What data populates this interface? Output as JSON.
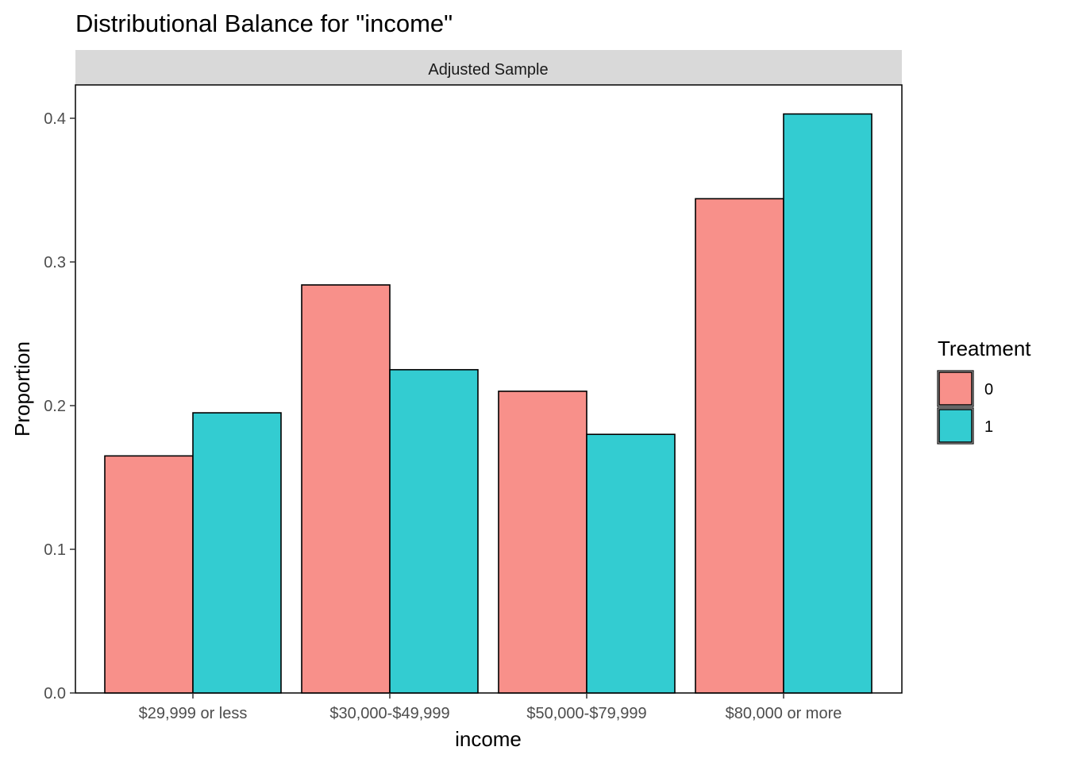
{
  "title": "Distributional Balance for \"income\"",
  "facet_label": "Adjusted Sample",
  "chart_data": {
    "type": "bar",
    "title": "Distributional Balance for \"income\"",
    "facet": "Adjusted Sample",
    "xlabel": "income",
    "ylabel": "Proportion",
    "categories": [
      "$29,999 or less",
      "$30,000-$49,999",
      "$50,000-$79,999",
      "$80,000 or more"
    ],
    "series": [
      {
        "name": "0",
        "color": "#F8908A",
        "values": [
          0.165,
          0.284,
          0.21,
          0.344
        ]
      },
      {
        "name": "1",
        "color": "#33CCD1",
        "values": [
          0.195,
          0.225,
          0.18,
          0.403
        ]
      }
    ],
    "ylim": [
      0,
      0.42
    ],
    "yticks": [
      0.0,
      0.1,
      0.2,
      0.3,
      0.4
    ],
    "ytick_labels": [
      "0.0",
      "0.1",
      "0.2",
      "0.3",
      "0.4"
    ],
    "grid": false,
    "legend": {
      "title": "Treatment",
      "position": "right",
      "entries": [
        "0",
        "1"
      ]
    }
  }
}
